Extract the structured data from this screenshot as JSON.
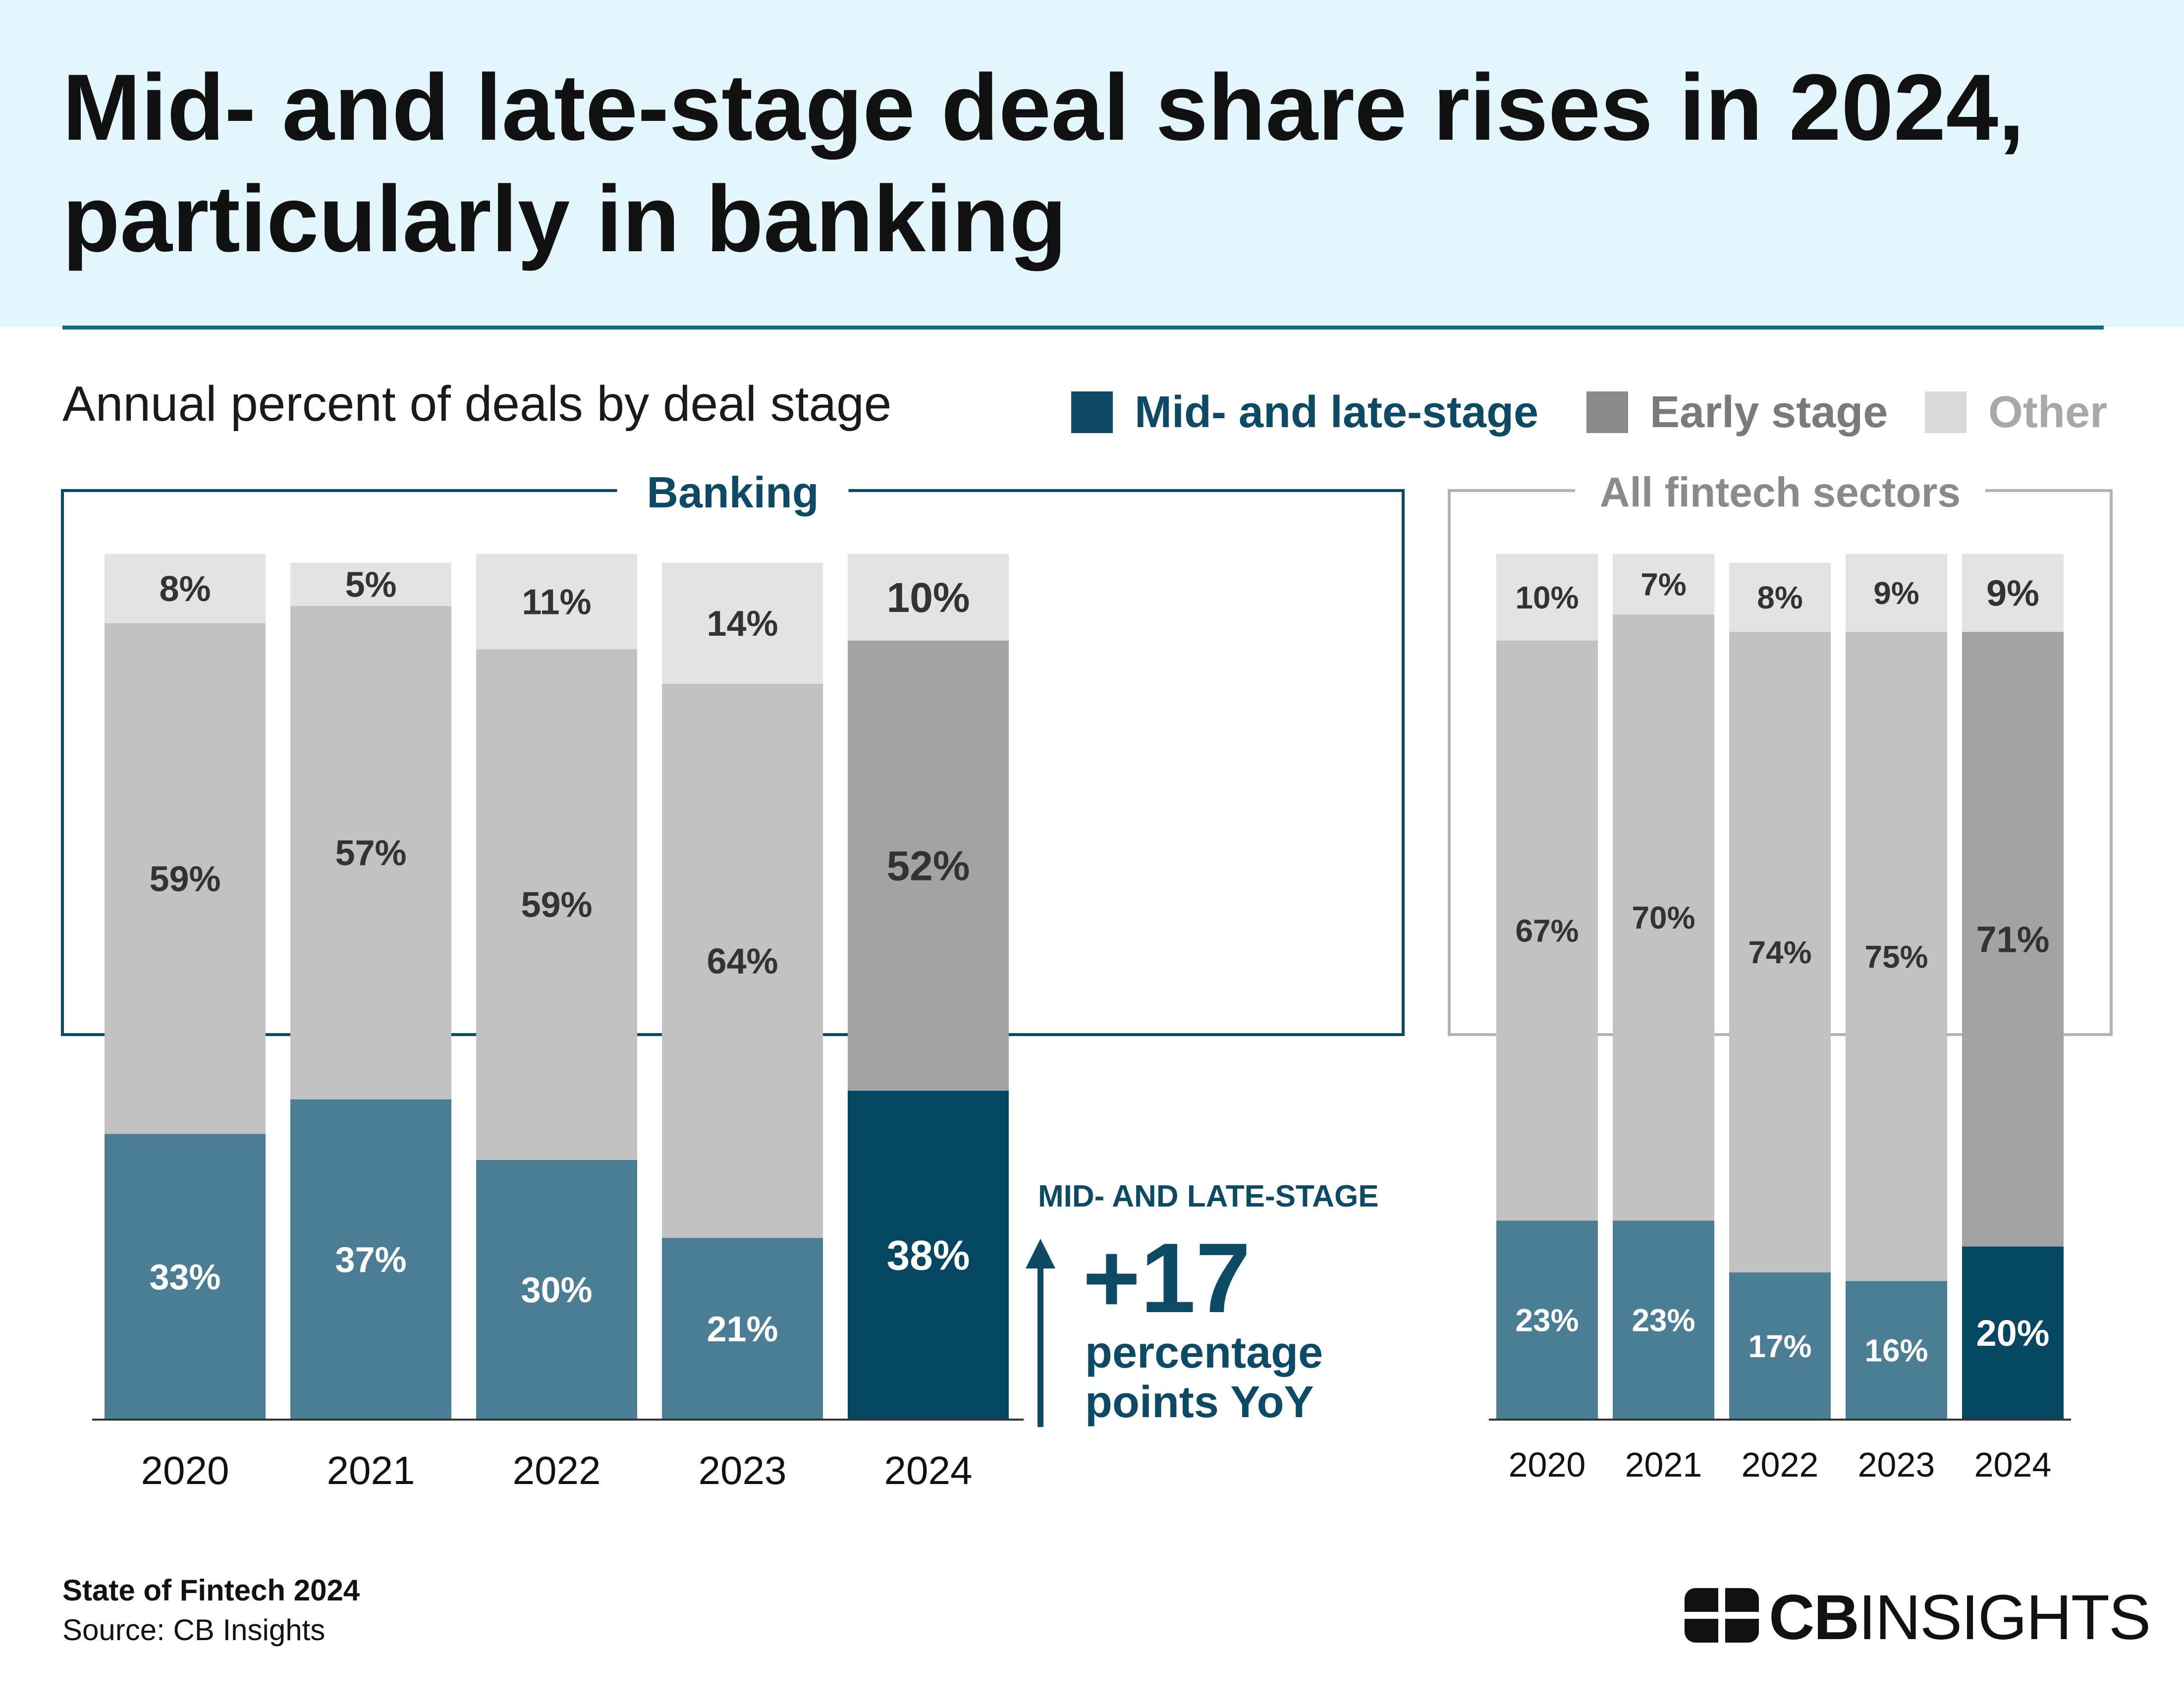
{
  "header": {
    "title": "Mid- and late-stage deal share rises in 2024, particularly in banking",
    "subtitle": "Annual percent of deals by deal stage"
  },
  "legend": [
    {
      "label": "Mid- and late-stage",
      "color": "#0d4a66",
      "text_color": "#0d4a66"
    },
    {
      "label": "Early stage",
      "color": "#8a8a8a",
      "text_color": "#7a7a7a"
    },
    {
      "label": "Other",
      "color": "#d9d9d9",
      "text_color": "#a8a8a8"
    }
  ],
  "callout": {
    "kicker": "MID- AND LATE-STAGE",
    "value": "+17",
    "text": "percentage points YoY"
  },
  "footer": {
    "title": "State of Fintech 2024",
    "source": "Source: CB Insights"
  },
  "brand": {
    "cb": "CB",
    "rest": "INSIGHTS"
  },
  "colors": {
    "mid_late_highlight": "#054663",
    "mid_late": "#4b7d95",
    "early_highlight": "#a3a3a3",
    "early": "#c2c2c2",
    "other": "#e3e3e3",
    "banking_frame": "#0d4a66",
    "fintech_frame": "#b3b3b3"
  },
  "chart_data": [
    {
      "type": "bar",
      "stacked": true,
      "title": "Banking",
      "categories": [
        "2020",
        "2021",
        "2022",
        "2023",
        "2024"
      ],
      "highlight_category": "2024",
      "series": [
        {
          "name": "Mid- and late-stage",
          "values": [
            33,
            37,
            30,
            21,
            38
          ],
          "labels": [
            "33%",
            "37%",
            "30%",
            "21%",
            "38%"
          ]
        },
        {
          "name": "Early stage",
          "values": [
            59,
            57,
            59,
            64,
            52
          ],
          "labels": [
            "59%",
            "57%",
            "59%",
            "64%",
            "52%"
          ]
        },
        {
          "name": "Other",
          "values": [
            8,
            5,
            11,
            14,
            10
          ],
          "labels": [
            "8%",
            "5%",
            "11%",
            "14%",
            "10%"
          ]
        }
      ],
      "ylim": [
        0,
        100
      ]
    },
    {
      "type": "bar",
      "stacked": true,
      "title": "All fintech sectors",
      "categories": [
        "2020",
        "2021",
        "2022",
        "2023",
        "2024"
      ],
      "highlight_category": "2024",
      "series": [
        {
          "name": "Mid- and late-stage",
          "values": [
            23,
            23,
            17,
            16,
            20
          ],
          "labels": [
            "23%",
            "23%",
            "17%",
            "16%",
            "20%"
          ]
        },
        {
          "name": "Early stage",
          "values": [
            67,
            70,
            74,
            75,
            71
          ],
          "labels": [
            "67%",
            "70%",
            "74%",
            "75%",
            "71%"
          ]
        },
        {
          "name": "Other",
          "values": [
            10,
            7,
            8,
            9,
            9
          ],
          "labels": [
            "10%",
            "7%",
            "8%",
            "9%",
            "9%"
          ]
        }
      ],
      "ylim": [
        0,
        100
      ]
    }
  ]
}
